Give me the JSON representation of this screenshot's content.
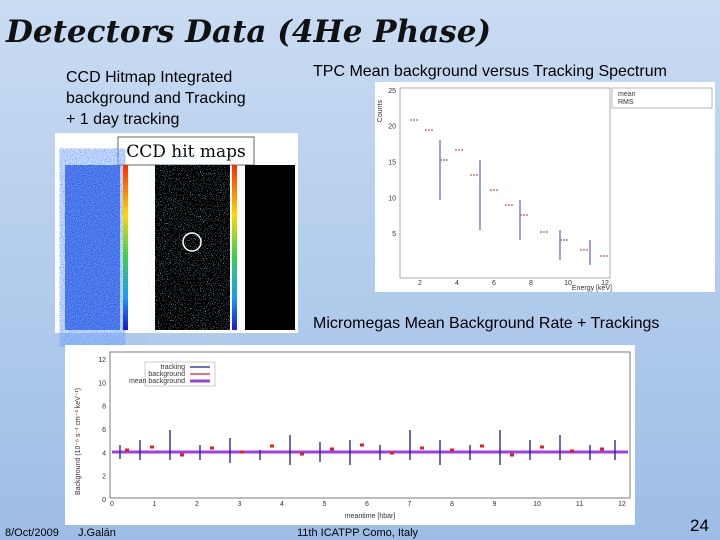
{
  "title": "Detectors Data (4He Phase)",
  "panels": [
    {
      "caption": [
        "CCD Hitmap Integrated",
        "background and  Tracking",
        "+ 1 day tracking"
      ],
      "image_label": "CCD hit maps"
    },
    {
      "caption": "TPC Mean background versus Tracking Spectrum",
      "plot": {
        "y_label": "Counts",
        "x_label": "Energy [keV]",
        "stats": [
          "mean",
          "RMS"
        ],
        "yticks": [
          5,
          10,
          15,
          20,
          25
        ],
        "xticks": [
          2,
          4,
          6,
          8,
          10,
          12
        ]
      }
    },
    {
      "caption": "Micromegas Mean Background Rate + Trackings",
      "plot": {
        "legend": [
          "tracking",
          "background",
          "mean background"
        ],
        "y_label": "Background (10⁻⁶ s⁻¹ cm⁻² keV⁻¹)",
        "x_label": "meantime [hbar]",
        "yticks": [
          0,
          2,
          4,
          6,
          8,
          10,
          12
        ],
        "xticks": [
          0,
          1,
          2,
          3,
          4,
          5,
          6,
          7,
          8,
          9,
          10,
          11,
          12
        ]
      }
    }
  ],
  "footer": {
    "date": "8/Oct/2009",
    "author": "J.Galán",
    "event": "11th ICATPP Como, Italy",
    "page": "24"
  }
}
